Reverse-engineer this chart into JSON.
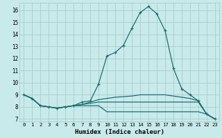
{
  "xlabel": "Humidex (Indice chaleur)",
  "bg_color": "#c9eaea",
  "grid_color": "#a8cccc",
  "line_color": "#1a6e6e",
  "xlim": [
    -0.5,
    23.5
  ],
  "ylim": [
    6.8,
    16.6
  ],
  "xticks": [
    0,
    1,
    2,
    3,
    4,
    5,
    6,
    7,
    8,
    9,
    10,
    11,
    12,
    13,
    14,
    15,
    16,
    17,
    18,
    19,
    20,
    21,
    22,
    23
  ],
  "yticks": [
    7,
    8,
    9,
    10,
    11,
    12,
    13,
    14,
    15,
    16
  ],
  "line1_x": [
    0,
    1,
    2,
    3,
    4,
    5,
    6,
    7,
    8,
    9,
    10,
    11,
    12,
    13,
    14,
    15,
    16,
    17,
    18,
    19,
    20,
    21,
    22,
    23
  ],
  "line1_y": [
    9.0,
    8.7,
    8.1,
    8.0,
    7.9,
    8.0,
    8.1,
    8.4,
    8.5,
    9.9,
    12.2,
    12.5,
    13.1,
    14.5,
    15.8,
    16.3,
    15.7,
    14.3,
    11.2,
    9.5,
    9.0,
    8.5,
    7.4,
    7.0
  ],
  "line2_x": [
    0,
    1,
    2,
    3,
    4,
    5,
    6,
    7,
    8,
    9,
    10,
    11,
    12,
    13,
    14,
    15,
    16,
    17,
    18,
    19,
    20,
    21,
    22,
    23
  ],
  "line2_y": [
    9.0,
    8.7,
    8.1,
    8.0,
    7.9,
    8.0,
    8.1,
    8.2,
    8.4,
    8.6,
    8.7,
    8.8,
    8.85,
    8.9,
    9.0,
    9.0,
    9.0,
    9.0,
    8.9,
    8.8,
    8.7,
    8.5,
    7.4,
    7.0
  ],
  "line3_x": [
    0,
    1,
    2,
    3,
    4,
    5,
    6,
    7,
    8,
    9,
    10,
    11,
    12,
    13,
    14,
    15,
    16,
    17,
    18,
    19,
    20,
    21,
    22,
    23
  ],
  "line3_y": [
    9.0,
    8.7,
    8.1,
    8.0,
    7.9,
    8.0,
    8.1,
    8.2,
    8.3,
    8.4,
    8.4,
    8.4,
    8.4,
    8.4,
    8.4,
    8.4,
    8.4,
    8.4,
    8.4,
    8.4,
    8.4,
    8.4,
    7.4,
    7.0
  ],
  "line4_x": [
    0,
    1,
    2,
    3,
    4,
    5,
    6,
    7,
    8,
    9,
    10,
    11,
    12,
    13,
    14,
    15,
    16,
    17,
    18,
    19,
    20,
    21,
    22,
    23
  ],
  "line4_y": [
    9.0,
    8.7,
    8.1,
    8.0,
    7.9,
    8.0,
    8.1,
    8.1,
    8.1,
    8.1,
    7.6,
    7.6,
    7.6,
    7.6,
    7.6,
    7.6,
    7.6,
    7.6,
    7.6,
    7.6,
    7.6,
    7.6,
    7.4,
    7.0
  ]
}
